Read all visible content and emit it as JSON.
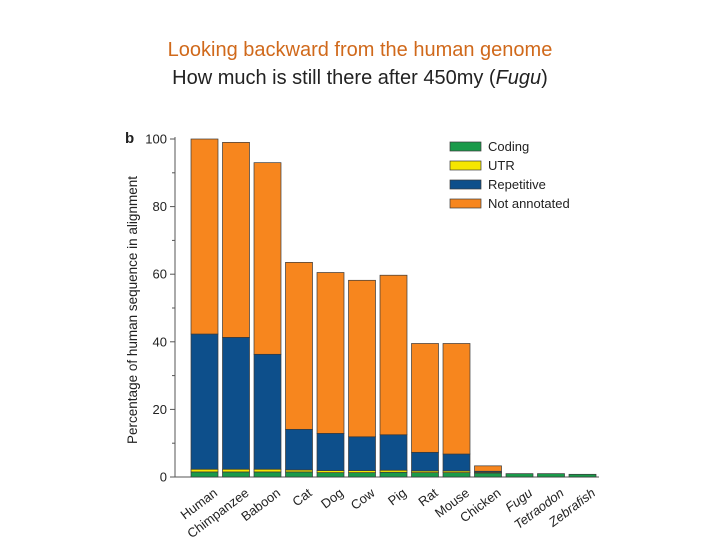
{
  "slide": {
    "title_line_1": "Looking backward from the human genome",
    "title_line_2_prefix": "How much is still there after 450my (",
    "title_line_2_italic": "Fugu",
    "title_line_2_suffix": ")"
  },
  "chart_data": {
    "type": "bar",
    "stacked": true,
    "panel_label": "b",
    "ylabel": "Percentage of human sequence in alignment",
    "xlabel": "",
    "ylim": [
      0,
      100
    ],
    "yticks": [
      0,
      20,
      40,
      60,
      80,
      100
    ],
    "grid": false,
    "legend_position": "top-right",
    "categories": [
      "Human",
      "Chimpanzee",
      "Baboon",
      "Cat",
      "Dog",
      "Cow",
      "Pig",
      "Rat",
      "Mouse",
      "Chicken",
      "Fugu",
      "Tetraodon",
      "Zebrafish"
    ],
    "italic_categories": [
      "Fugu",
      "Tetraodon",
      "Zebrafish"
    ],
    "series": [
      {
        "name": "Coding",
        "color": "#1a9a4a",
        "values": [
          1.5,
          1.5,
          1.5,
          1.5,
          1.3,
          1.3,
          1.4,
          1.3,
          1.3,
          1.2,
          1.0,
          1.0,
          0.8
        ]
      },
      {
        "name": "UTR",
        "color": "#f5e600",
        "values": [
          0.8,
          0.8,
          0.8,
          0.6,
          0.6,
          0.6,
          0.6,
          0.5,
          0.5,
          0.2,
          0,
          0,
          0
        ]
      },
      {
        "name": "Repetitive",
        "color": "#0d4f8b",
        "values": [
          40,
          39,
          34,
          12,
          11,
          10,
          10.5,
          5.5,
          5,
          0.3,
          0,
          0,
          0
        ]
      },
      {
        "name": "Not annotated",
        "color": "#f7861e",
        "values": [
          57.7,
          57.7,
          56.7,
          49.4,
          47.6,
          46.3,
          47.2,
          32.2,
          32.7,
          1.6,
          0,
          0,
          0
        ]
      }
    ]
  }
}
